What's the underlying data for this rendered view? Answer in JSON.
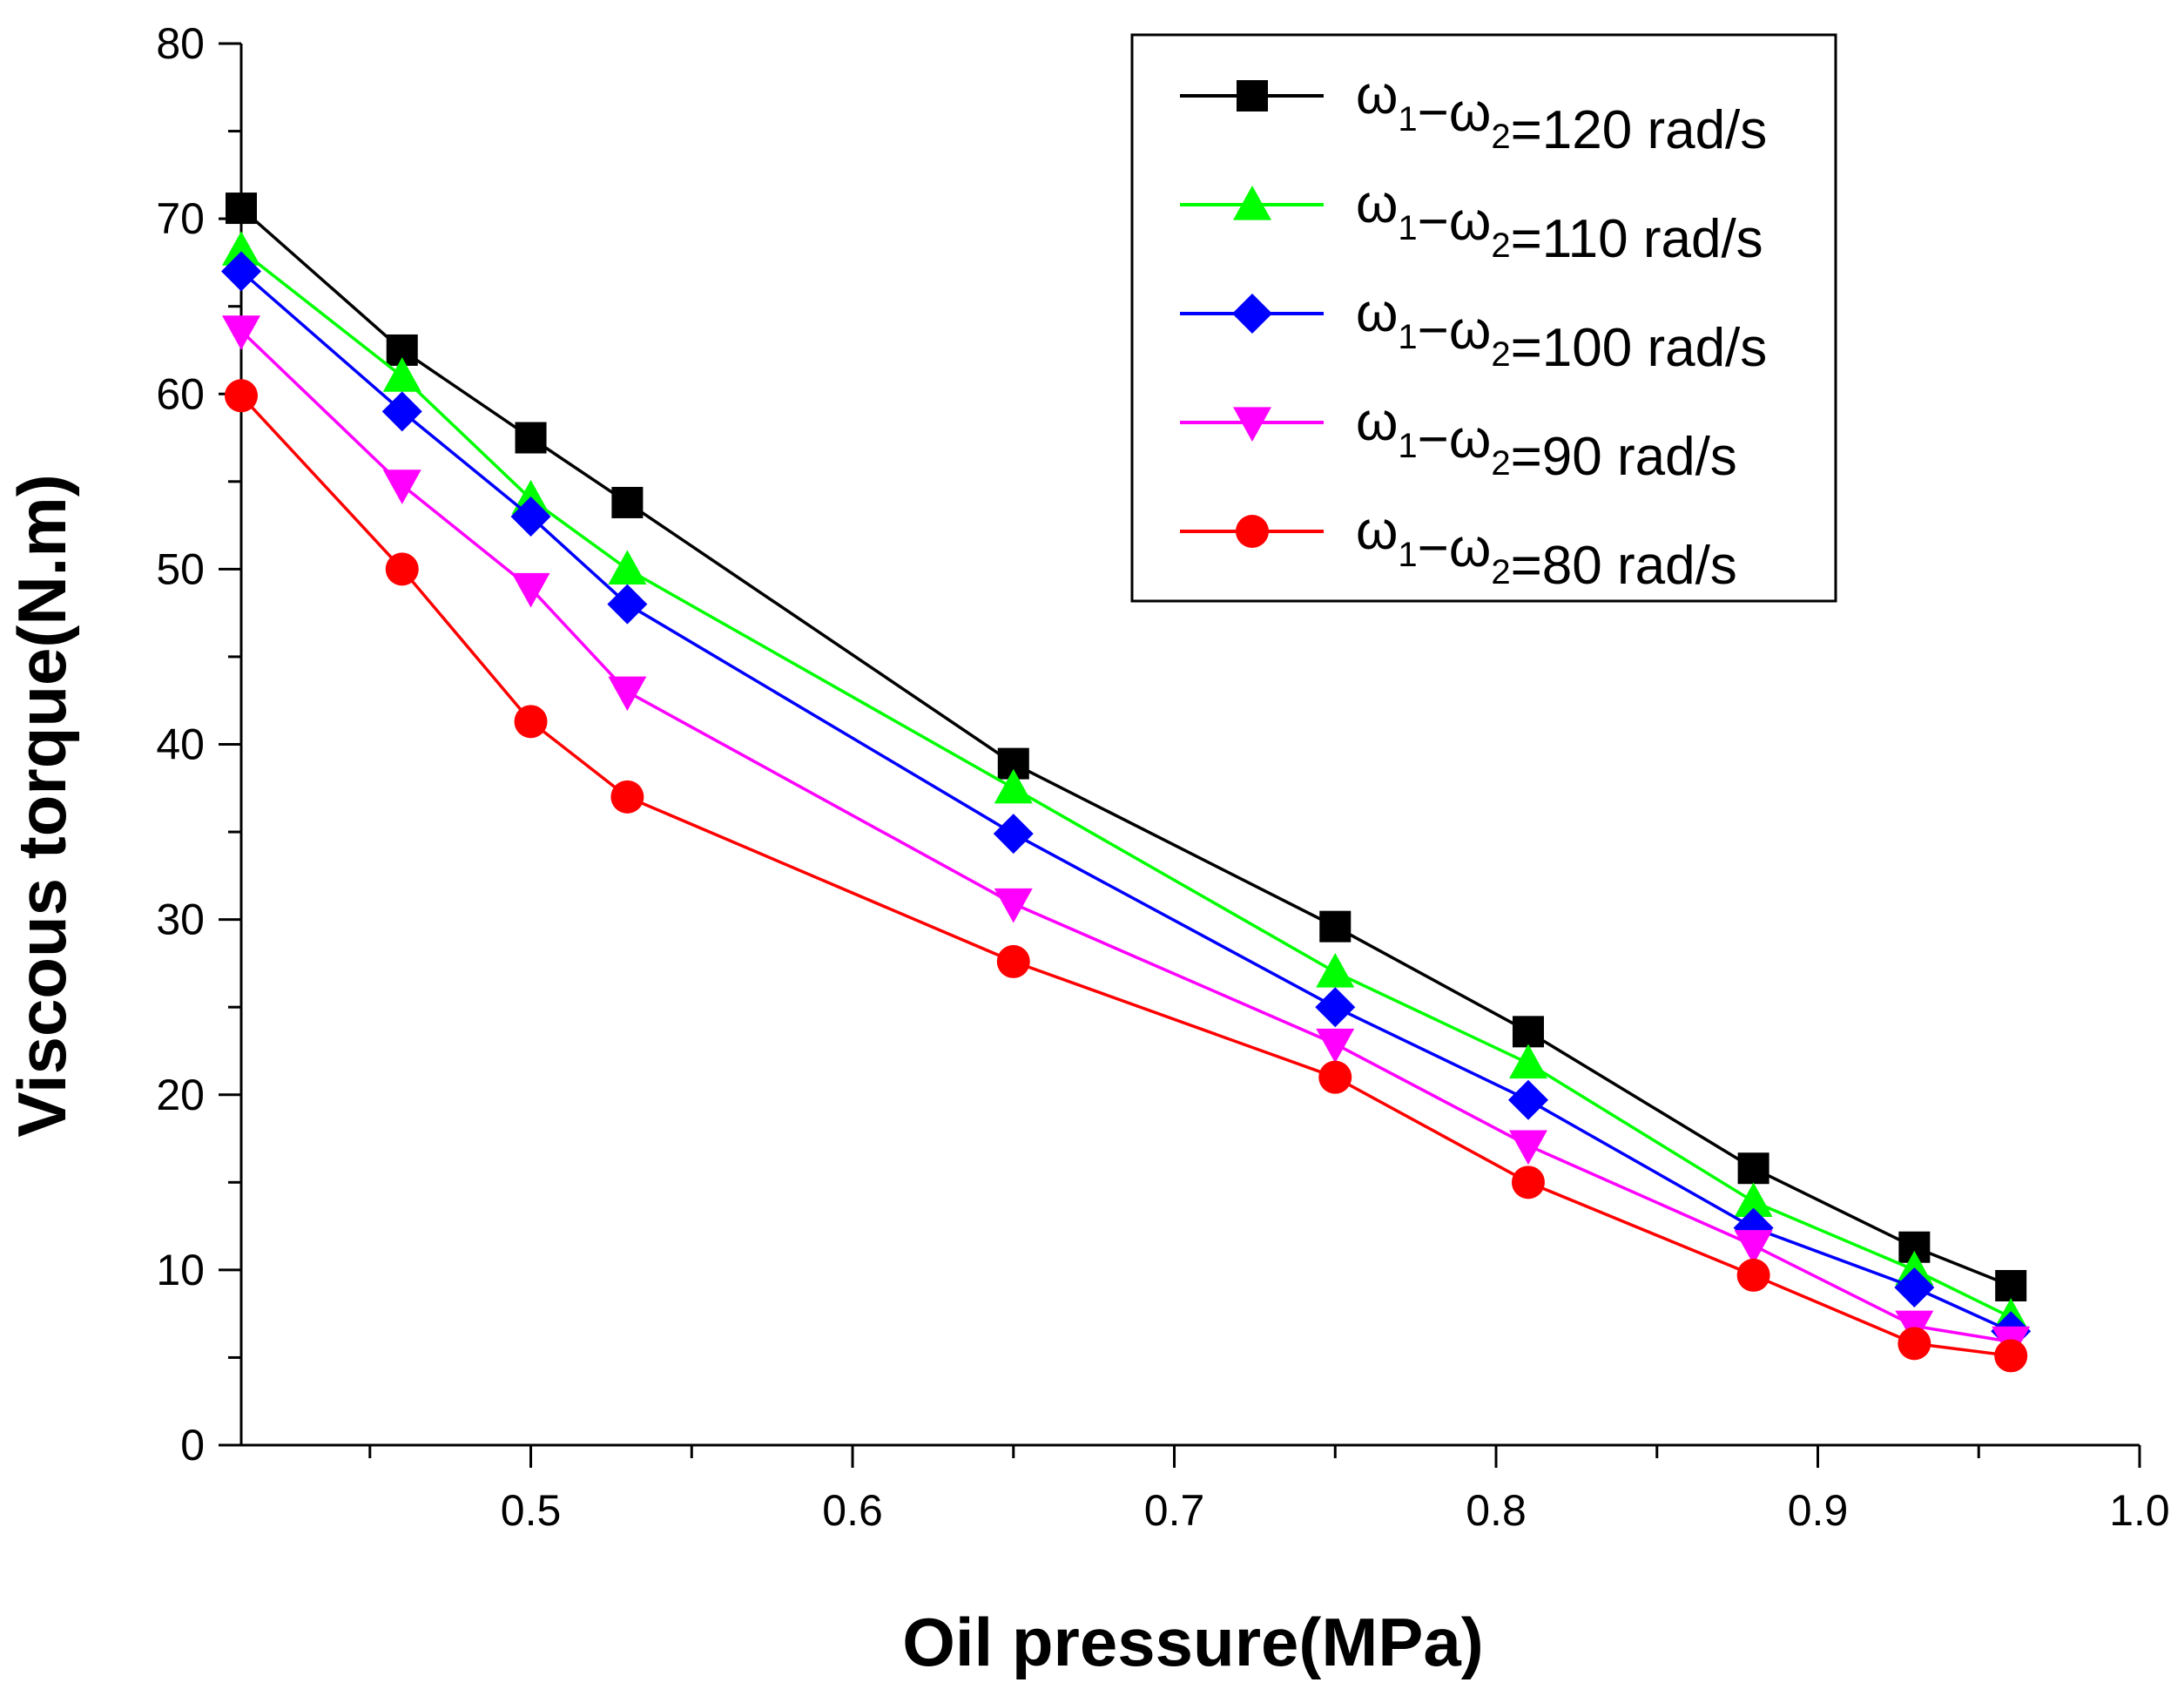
{
  "chart_data": {
    "type": "line",
    "title": "",
    "xlabel": "Oil pressure(MPa)",
    "ylabel": "Viscous torque(N.m)",
    "xlim": [
      0.41,
      1.0
    ],
    "ylim": [
      0,
      80
    ],
    "x_ticks": [
      {
        "value": 0.5,
        "label": "0.5"
      },
      {
        "value": 0.6,
        "label": "0.6"
      },
      {
        "value": 0.7,
        "label": "0.7"
      },
      {
        "value": 0.8,
        "label": "0.8"
      },
      {
        "value": 0.9,
        "label": "0.9"
      },
      {
        "value": 1.0,
        "label": "1.0"
      }
    ],
    "x_minor_ticks": [
      0.45,
      0.55,
      0.65,
      0.75,
      0.85,
      0.95
    ],
    "y_ticks": [
      {
        "value": 0,
        "label": "0"
      },
      {
        "value": 10,
        "label": "10"
      },
      {
        "value": 20,
        "label": "20"
      },
      {
        "value": 30,
        "label": "30"
      },
      {
        "value": 40,
        "label": "40"
      },
      {
        "value": 50,
        "label": "50"
      },
      {
        "value": 60,
        "label": "60"
      },
      {
        "value": 70,
        "label": "70"
      },
      {
        "value": 80,
        "label": "80"
      }
    ],
    "y_minor_ticks": [
      5,
      15,
      25,
      35,
      45,
      55,
      65,
      75
    ],
    "grid": false,
    "legend_position": "top-right",
    "x": [
      0.41,
      0.46,
      0.5,
      0.53,
      0.65,
      0.75,
      0.81,
      0.88,
      0.93,
      0.96
    ],
    "series": [
      {
        "name": "120",
        "legend": {
          "w": "ω",
          "s1": "1",
          "dash": "−",
          "s2": "2",
          "rest": "=120 rad/s"
        },
        "color": "#000000",
        "marker": "square",
        "values": [
          70.6,
          62.5,
          57.5,
          53.8,
          38.9,
          29.6,
          23.6,
          15.8,
          11.3,
          9.1
        ]
      },
      {
        "name": "110",
        "legend": {
          "w": "ω",
          "s1": "1",
          "dash": "−",
          "s2": "2",
          "rest": "=110 rad/s"
        },
        "color": "#00ff00",
        "marker": "triangle-up",
        "values": [
          68.2,
          61.0,
          54.0,
          50.0,
          37.5,
          27.0,
          21.8,
          13.9,
          10.0,
          7.3
        ]
      },
      {
        "name": "100",
        "legend": {
          "w": "ω",
          "s1": "1",
          "dash": "−",
          "s2": "2",
          "rest": "=100 rad/s"
        },
        "color": "#0000ff",
        "marker": "diamond",
        "values": [
          67.0,
          59.0,
          53.0,
          48.0,
          34.9,
          25.0,
          19.7,
          12.4,
          9.0,
          6.5
        ]
      },
      {
        "name": "90",
        "legend": {
          "w": "ω",
          "s1": "1",
          "dash": "−",
          "s2": "2",
          "rest": "=90 rad/s"
        },
        "color": "#ff00ff",
        "marker": "triangle-down",
        "values": [
          63.6,
          54.8,
          48.9,
          43.0,
          30.9,
          22.9,
          17.1,
          11.4,
          6.8,
          5.9
        ]
      },
      {
        "name": "80",
        "legend": {
          "w": "ω",
          "s1": "1",
          "dash": "−",
          "s2": "2",
          "rest": "=80 rad/s"
        },
        "color": "#ff0000",
        "marker": "circle",
        "values": [
          59.9,
          50.0,
          41.3,
          37.0,
          27.6,
          21.0,
          15.0,
          9.7,
          5.8,
          5.1
        ]
      }
    ]
  }
}
